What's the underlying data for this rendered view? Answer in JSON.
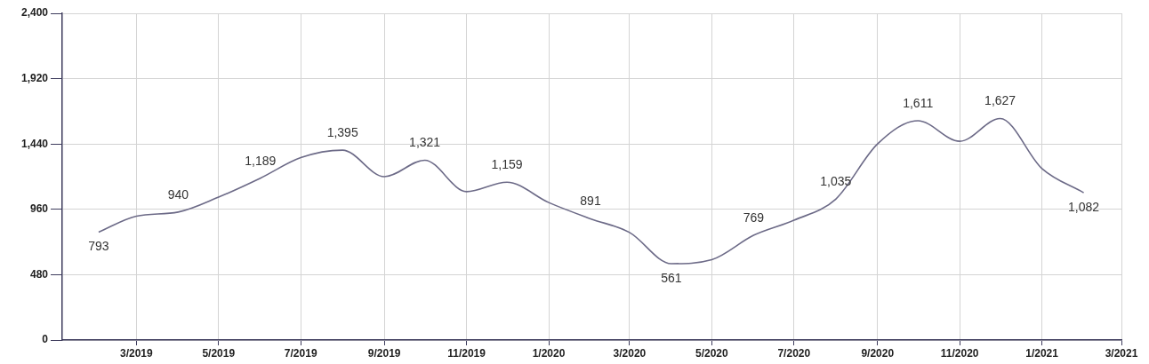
{
  "chart_data": {
    "type": "line",
    "x": [
      "2019-02",
      "2019-03",
      "2019-04",
      "2019-05",
      "2019-06",
      "2019-07",
      "2019-08",
      "2019-09",
      "2019-10",
      "2019-11",
      "2019-12",
      "2020-01",
      "2020-02",
      "2020-03",
      "2020-04",
      "2020-05",
      "2020-06",
      "2020-07",
      "2020-08",
      "2020-09",
      "2020-10",
      "2020-11",
      "2020-12",
      "2021-01",
      "2021-02"
    ],
    "series": [
      {
        "color": "#6c6a87",
        "values": [
          793,
          910,
          940,
          1050,
          1189,
          1340,
          1395,
          1200,
          1321,
          1090,
          1159,
          1010,
          891,
          790,
          561,
          590,
          769,
          880,
          1035,
          1440,
          1611,
          1460,
          1627,
          1260,
          1082
        ],
        "value_labels": [
          "793",
          null,
          "940",
          null,
          "1,189",
          null,
          "1,395",
          null,
          "1,321",
          null,
          "1,159",
          null,
          "891",
          null,
          "561",
          null,
          "769",
          null,
          "1,035",
          null,
          "1,611",
          null,
          "1,627",
          null,
          "1,082"
        ]
      }
    ],
    "ylim": [
      0,
      2400
    ],
    "yticks": [
      0,
      480,
      960,
      {
        "value": 1440,
        "label": "1,440"
      },
      {
        "value": 1920,
        "label": "1,920"
      },
      {
        "value": 2400,
        "label": "2,400"
      }
    ],
    "xlim": [
      "2019-01-05",
      "2021-03"
    ],
    "xticks": [
      {
        "value": "2019-03",
        "label": "3/2019"
      },
      {
        "value": "2019-05",
        "label": "5/2019"
      },
      {
        "value": "2019-07",
        "label": "7/2019"
      },
      {
        "value": "2019-09",
        "label": "9/2019"
      },
      {
        "value": "2019-11",
        "label": "11/2019"
      },
      {
        "value": "2020-01",
        "label": "1/2020"
      },
      {
        "value": "2020-03",
        "label": "3/2020"
      },
      {
        "value": "2020-05",
        "label": "5/2020"
      },
      {
        "value": "2020-07",
        "label": "7/2020"
      },
      {
        "value": "2020-09",
        "label": "9/2020"
      },
      {
        "value": "2020-11",
        "label": "11/2020"
      },
      {
        "value": "2021-01",
        "label": "1/2021"
      },
      {
        "value": "2021-03",
        "label": "3/2021"
      }
    ],
    "grid": true
  }
}
